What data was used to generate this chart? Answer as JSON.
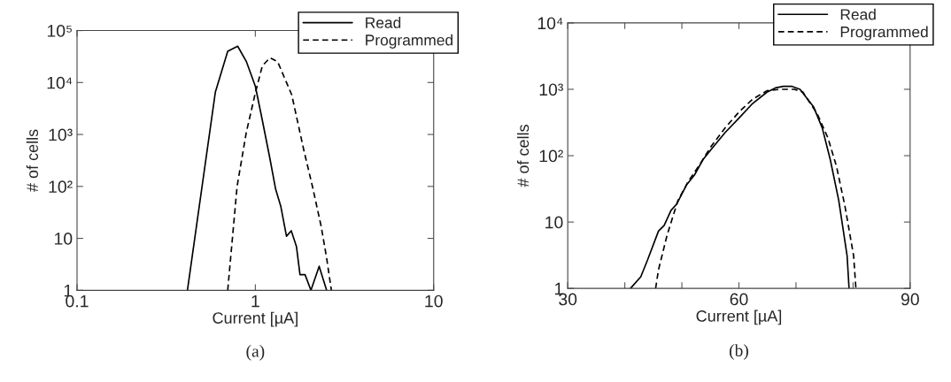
{
  "chart_data": [
    {
      "type": "line",
      "xlabel": "Current [µA]",
      "ylabel": "# of cells",
      "log": "xy",
      "legend": "top right",
      "grid": false,
      "annotations": [
        "(a)"
      ],
      "xlim": [
        0.1,
        10
      ],
      "xticks": [
        0.1,
        1,
        10
      ],
      "ylim": [
        1,
        100000
      ],
      "yticks": [
        1,
        10,
        {
          "value": 100,
          "label": "10²"
        },
        {
          "value": 1000,
          "label": "10³"
        },
        {
          "value": 10000,
          "label": "10⁴"
        },
        {
          "value": 100000,
          "label": "10⁵"
        }
      ],
      "series": [
        {
          "name": "Read",
          "color": "#000000",
          "line_style": "solid",
          "x": [
            0.416,
            0.597,
            0.7,
            0.796,
            0.892,
            1.0,
            1.095,
            1.205,
            1.3,
            1.39,
            1.495,
            1.59,
            1.7,
            1.78,
            1.9,
            2.05,
            2.28,
            2.51
          ],
          "values": [
            1,
            6600,
            40000,
            50000,
            25000,
            8500,
            1860,
            355,
            88,
            41,
            11,
            14,
            7,
            2,
            2,
            1,
            2.9,
            1
          ]
        },
        {
          "name": "Programmed",
          "color": "#000000",
          "line_style": "dashed",
          "x": [
            0.7,
            0.79,
            0.89,
            1.0,
            1.095,
            1.21,
            1.335,
            1.6,
            1.865,
            2.09,
            2.34,
            2.51,
            2.67
          ],
          "values": [
            1,
            100,
            1100,
            6300,
            21000,
            30000,
            25000,
            5800,
            520,
            100,
            17,
            4.2,
            1
          ]
        }
      ]
    },
    {
      "type": "line",
      "xlabel": "Current [µA]",
      "ylabel": "# of cells",
      "log": "y",
      "legend": "top right",
      "grid": false,
      "annotations": [
        "(b)"
      ],
      "xlim": [
        30,
        90
      ],
      "xticks": [
        30,
        {
          "value": 40,
          "label": null
        },
        {
          "value": 50,
          "label": null
        },
        60,
        {
          "value": 70,
          "label": null
        },
        {
          "value": 80,
          "label": null
        },
        90
      ],
      "ylim": [
        1,
        10000
      ],
      "yticks": [
        1,
        10,
        {
          "value": 100,
          "label": "10²"
        },
        {
          "value": 1000,
          "label": "10³"
        },
        {
          "value": 10000,
          "label": "10⁴"
        }
      ],
      "series": [
        {
          "name": "Read",
          "color": "#000000",
          "line_style": "solid",
          "x": [
            41.0,
            42.8,
            44.0,
            45.9,
            46.9,
            48.1,
            49.1,
            50.8,
            52.2,
            53.7,
            55.1,
            57.6,
            60,
            62.4,
            64.9,
            66.4,
            67.8,
            69.2,
            70.7,
            73.1,
            74.6,
            76.0,
            77.5,
            78.96,
            79.3
          ],
          "values": [
            1,
            1.5,
            2.7,
            7.3,
            8.9,
            15,
            18.7,
            36,
            51,
            87,
            123,
            224,
            368,
            611,
            905,
            1050,
            1110,
            1110,
            1000,
            540,
            262,
            88,
            21,
            3.1,
            1
          ]
        },
        {
          "name": "Programmed",
          "color": "#000000",
          "line_style": "dashed",
          "x": [
            45.4,
            45.9,
            47.4,
            49.3,
            51.2,
            53.2,
            55.1,
            57.6,
            60,
            62.4,
            64.9,
            67.3,
            69.7,
            71.2,
            73.7,
            75.6,
            77.1,
            78.6,
            80.1,
            80.5
          ],
          "values": [
            1,
            1.9,
            6.3,
            21,
            42,
            75,
            137,
            263,
            454,
            710,
            950,
            1000,
            1000,
            910,
            431,
            185,
            69,
            17,
            3.1,
            1
          ]
        }
      ]
    }
  ]
}
